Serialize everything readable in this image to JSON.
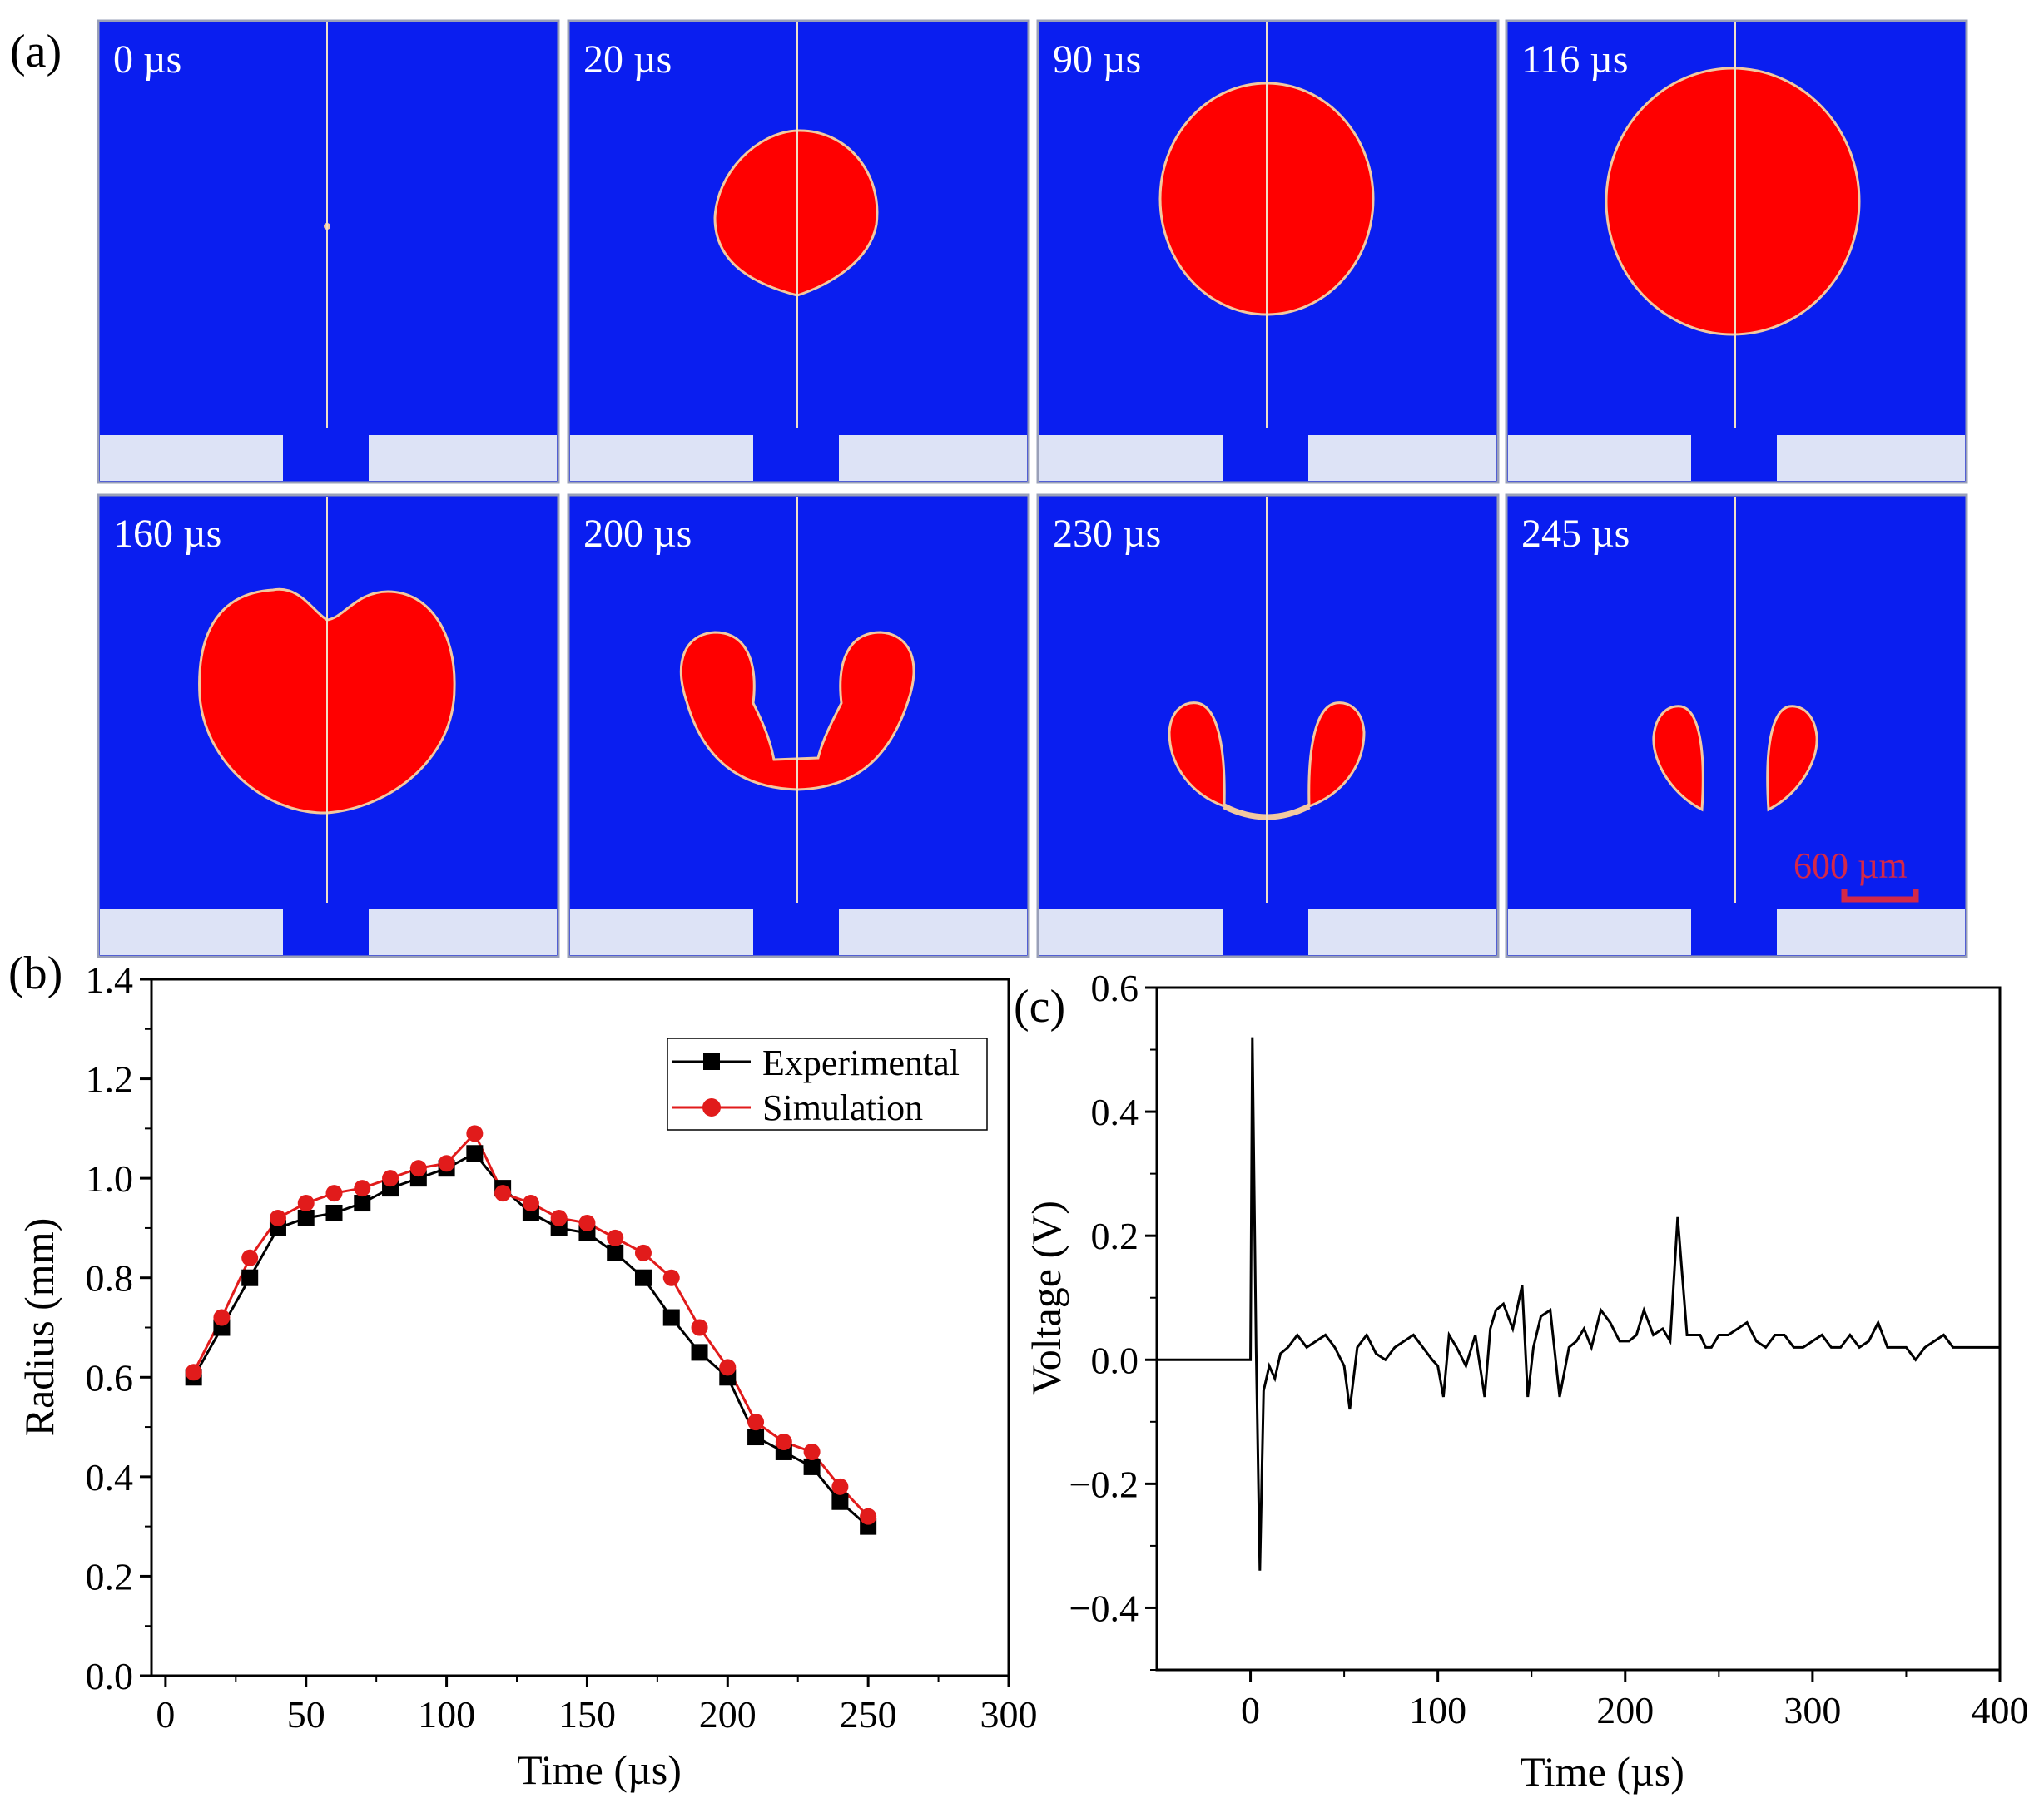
{
  "panel_labels": {
    "a": "(a)",
    "b": "(b)",
    "c": "(c)"
  },
  "colors": {
    "fluid": "#0a1ef0",
    "bubble": "#ff0000",
    "bubble_outline": "#f2c9a0",
    "axis_line": "#f0e0c8",
    "electrode": "#dde3f6",
    "scale_bar": "#d42848",
    "experimental": "#000000",
    "simulation": "#e11b1b",
    "voltage": "#000000"
  },
  "frames": [
    {
      "time": "0 µs",
      "shape": "seed"
    },
    {
      "time": "20 µs",
      "shape": "small-bubble"
    },
    {
      "time": "90 µs",
      "shape": "round-bubble"
    },
    {
      "time": "116 µs",
      "shape": "max-bubble"
    },
    {
      "time": "160 µs",
      "shape": "dimpled-bubble"
    },
    {
      "time": "200 µs",
      "shape": "u-shaped-bubble"
    },
    {
      "time": "230 µs",
      "shape": "splitting-bubble"
    },
    {
      "time": "245 µs",
      "shape": "split-droplets"
    }
  ],
  "scale_bar": {
    "label": "600 µm"
  },
  "chart_data": [
    {
      "type": "line",
      "panel": "(b)",
      "xlabel": "Time (µs)",
      "ylabel": "Radius (mm)",
      "xlim": [
        -5,
        300
      ],
      "ylim": [
        0,
        1.4
      ],
      "xticks": [
        0,
        50,
        100,
        150,
        200,
        250,
        300
      ],
      "yticks": [
        0.0,
        0.2,
        0.4,
        0.6,
        0.8,
        1.0,
        1.2,
        1.4
      ],
      "xtick_labels": [
        "0",
        "50",
        "100",
        "150",
        "200",
        "250",
        "300"
      ],
      "ytick_labels": [
        "0.0",
        "0.2",
        "0.4",
        "0.6",
        "0.8",
        "1.0",
        "1.2",
        "1.4"
      ],
      "legend_position": "top-right",
      "grid": false,
      "x": [
        10,
        20,
        30,
        40,
        50,
        60,
        70,
        80,
        90,
        100,
        110,
        120,
        130,
        140,
        150,
        160,
        170,
        180,
        190,
        200,
        210,
        220,
        230,
        240,
        250
      ],
      "series": [
        {
          "name": "Experimental",
          "marker": "square",
          "color": "#000000",
          "values": [
            0.6,
            0.7,
            0.8,
            0.9,
            0.92,
            0.93,
            0.95,
            0.98,
            1.0,
            1.02,
            1.05,
            0.98,
            0.93,
            0.9,
            0.89,
            0.85,
            0.8,
            0.72,
            0.65,
            0.6,
            0.48,
            0.45,
            0.42,
            0.35,
            0.3
          ]
        },
        {
          "name": "Simulation",
          "marker": "circle",
          "color": "#e11b1b",
          "values": [
            0.61,
            0.72,
            0.84,
            0.92,
            0.95,
            0.97,
            0.98,
            1.0,
            1.02,
            1.03,
            1.09,
            0.97,
            0.95,
            0.92,
            0.91,
            0.88,
            0.85,
            0.8,
            0.7,
            0.62,
            0.51,
            0.47,
            0.45,
            0.38,
            0.32
          ]
        }
      ]
    },
    {
      "type": "line",
      "panel": "(c)",
      "xlabel": "Time (µs)",
      "ylabel": "Voltage (V)",
      "xlim": [
        -50,
        400
      ],
      "ylim": [
        -0.5,
        0.6
      ],
      "xticks": [
        0,
        100,
        200,
        300,
        400
      ],
      "yticks": [
        -0.4,
        -0.2,
        0.0,
        0.2,
        0.4,
        0.6
      ],
      "xtick_labels": [
        "0",
        "100",
        "200",
        "300",
        "400"
      ],
      "ytick_labels": [
        "−0.4",
        "−0.2",
        "0.0",
        "0.2",
        "0.4",
        "0.6"
      ],
      "grid": false,
      "series": [
        {
          "color": "#000000",
          "x": [
            -50,
            0,
            1,
            3,
            5,
            7,
            10,
            13,
            16,
            20,
            25,
            30,
            35,
            40,
            45,
            50,
            53,
            57,
            62,
            67,
            72,
            77,
            82,
            87,
            92,
            97,
            100,
            103,
            106,
            110,
            115,
            120,
            125,
            128,
            131,
            135,
            140,
            145,
            148,
            151,
            155,
            160,
            165,
            170,
            174,
            178,
            182,
            187,
            192,
            197,
            202,
            206,
            210,
            215,
            220,
            224,
            228,
            233,
            237,
            240,
            243,
            246,
            250,
            255,
            260,
            265,
            270,
            275,
            280,
            285,
            290,
            295,
            300,
            305,
            310,
            315,
            320,
            325,
            330,
            335,
            340,
            345,
            350,
            355,
            360,
            365,
            370,
            375,
            380,
            385,
            390,
            395,
            400
          ],
          "y": [
            0,
            0,
            0.52,
            0.02,
            -0.34,
            -0.05,
            -0.01,
            -0.03,
            0.01,
            0.02,
            0.04,
            0.02,
            0.03,
            0.04,
            0.02,
            -0.01,
            -0.08,
            0.02,
            0.04,
            0.01,
            0.0,
            0.02,
            0.03,
            0.04,
            0.02,
            0.0,
            -0.01,
            -0.06,
            0.04,
            0.02,
            -0.01,
            0.04,
            -0.06,
            0.05,
            0.08,
            0.09,
            0.05,
            0.12,
            -0.06,
            0.02,
            0.07,
            0.08,
            -0.06,
            0.02,
            0.03,
            0.05,
            0.02,
            0.08,
            0.06,
            0.03,
            0.03,
            0.04,
            0.08,
            0.04,
            0.05,
            0.03,
            0.23,
            0.04,
            0.04,
            0.04,
            0.02,
            0.02,
            0.04,
            0.04,
            0.05,
            0.06,
            0.03,
            0.02,
            0.04,
            0.04,
            0.02,
            0.02,
            0.03,
            0.04,
            0.02,
            0.02,
            0.04,
            0.02,
            0.03,
            0.06,
            0.02,
            0.02,
            0.02,
            0.0,
            0.02,
            0.03,
            0.04,
            0.02,
            0.02,
            0.02,
            0.02,
            0.02,
            0.02
          ]
        }
      ]
    }
  ]
}
